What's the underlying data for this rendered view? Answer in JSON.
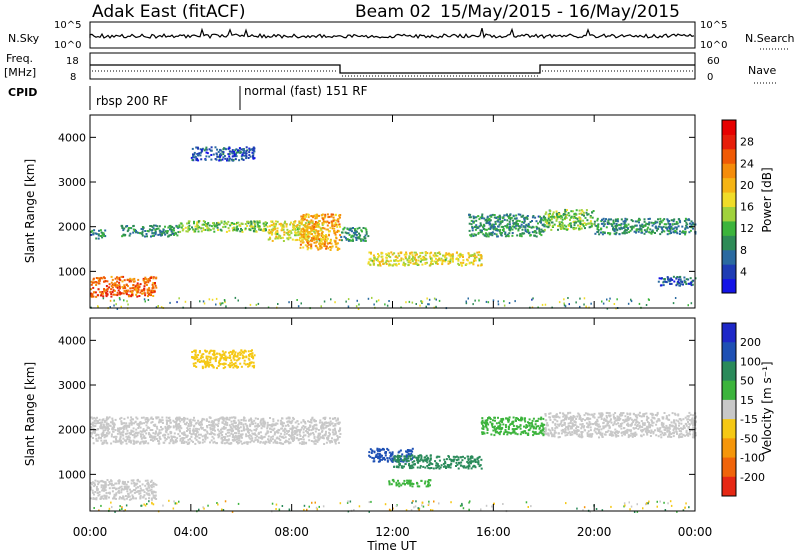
{
  "header": {
    "station": "Adak East (fitACF)",
    "beam": "Beam 02",
    "dates": "15/May/2015 - 16/May/2015"
  },
  "strip_nsky": {
    "left_label": "N.Sky",
    "right_label": "N.Search",
    "ticks_left": [
      "10^5",
      "10^0"
    ],
    "ticks_right": [
      "10^5",
      "10^0"
    ]
  },
  "strip_freq": {
    "left_label_1": "Freq.",
    "left_label_2": "[MHz]",
    "ticks_left": [
      "18",
      "8"
    ],
    "ticks_right": [
      "60",
      "0"
    ],
    "right_label": "Nave"
  },
  "strip_cpid": {
    "label": "CPID",
    "segments": [
      {
        "start_hour": 0,
        "text": "rbsp 200 RF"
      },
      {
        "start_hour": 6,
        "text": "normal (fast) 151 RF"
      }
    ]
  },
  "xaxis": {
    "label": "Time UT",
    "ticks": [
      "00:00",
      "04:00",
      "08:00",
      "12:00",
      "16:00",
      "20:00",
      "00:00"
    ]
  },
  "power_panel": {
    "ylabel": "Slant Range [km]",
    "yticks": [
      "1000",
      "2000",
      "3000",
      "4000"
    ],
    "colorbar_label": "Power [dB]",
    "colorbar_ticks": [
      "4",
      "8",
      "12",
      "16",
      "20",
      "24",
      "28"
    ],
    "colors": [
      "#1414e6",
      "#1e3cb4",
      "#2a6aa0",
      "#2e8b57",
      "#3cb43c",
      "#a0d23c",
      "#f0dc28",
      "#f5b414",
      "#f58c0a",
      "#f05a05",
      "#e61e0a",
      "#e60000"
    ]
  },
  "velocity_panel": {
    "ylabel": "Slant Range [km]",
    "yticks": [
      "1000",
      "2000",
      "3000",
      "4000"
    ],
    "colorbar_label": "Velocity [m s⁻¹]",
    "colorbar_ticks": [
      "200",
      "100",
      "50",
      "15",
      "-15",
      "-50",
      "-100",
      "-200"
    ],
    "colors": [
      "#1e28c8",
      "#1e50b4",
      "#2a8a5a",
      "#3cb43c",
      "#c8c8c8",
      "#f5c814",
      "#f5960a",
      "#f0640a",
      "#e62814"
    ]
  },
  "chart_data": {
    "type": "heatmap",
    "x_range_hours": [
      0,
      24
    ],
    "y_range_km": [
      180,
      4500
    ],
    "power_echo_bands": [
      {
        "t0": 0.0,
        "t1": 2.6,
        "r0": 450,
        "r1": 900,
        "power_db": 24
      },
      {
        "t0": 0.0,
        "t1": 0.6,
        "r0": 1750,
        "r1": 1950,
        "power_db": 8
      },
      {
        "t0": 1.2,
        "t1": 3.5,
        "r0": 1800,
        "r1": 2050,
        "power_db": 8
      },
      {
        "t0": 3.5,
        "t1": 7.0,
        "r0": 1900,
        "r1": 2150,
        "power_db": 12
      },
      {
        "t0": 7.0,
        "t1": 9.2,
        "r0": 1700,
        "r1": 2150,
        "power_db": 16
      },
      {
        "t0": 8.3,
        "t1": 9.9,
        "r0": 1500,
        "r1": 2300,
        "power_db": 20
      },
      {
        "t0": 9.9,
        "t1": 11.0,
        "r0": 1700,
        "r1": 2000,
        "power_db": 8
      },
      {
        "t0": 11.0,
        "t1": 15.5,
        "r0": 1150,
        "r1": 1450,
        "power_db": 16
      },
      {
        "t0": 15.0,
        "t1": 18.0,
        "r0": 1800,
        "r1": 2300,
        "power_db": 8
      },
      {
        "t0": 18.0,
        "t1": 20.0,
        "r0": 1950,
        "r1": 2400,
        "power_db": 12
      },
      {
        "t0": 20.0,
        "t1": 24.0,
        "r0": 1850,
        "r1": 2200,
        "power_db": 8
      },
      {
        "t0": 4.0,
        "t1": 6.5,
        "r0": 3500,
        "r1": 3800,
        "power_db": 4
      },
      {
        "t0": 22.5,
        "t1": 24.0,
        "r0": 700,
        "r1": 900,
        "power_db": 4
      }
    ],
    "velocity_echo_bands": [
      {
        "t0": 0.0,
        "t1": 2.6,
        "r0": 450,
        "r1": 900,
        "vel": 0
      },
      {
        "t0": 0.0,
        "t1": 9.9,
        "r0": 1700,
        "r1": 2300,
        "vel": 0
      },
      {
        "t0": 11.0,
        "t1": 12.8,
        "r0": 1300,
        "r1": 1600,
        "vel": 150
      },
      {
        "t0": 12.0,
        "t1": 15.5,
        "r0": 1150,
        "r1": 1450,
        "vel": 60
      },
      {
        "t0": 11.8,
        "t1": 13.5,
        "r0": 750,
        "r1": 900,
        "vel": 40
      },
      {
        "t0": 15.5,
        "t1": 18.0,
        "r0": 1900,
        "r1": 2300,
        "vel": 40
      },
      {
        "t0": 18.0,
        "t1": 24.0,
        "r0": 1850,
        "r1": 2400,
        "vel": 0
      },
      {
        "t0": 4.0,
        "t1": 6.5,
        "r0": 3400,
        "r1": 3800,
        "vel": -40
      }
    ]
  }
}
